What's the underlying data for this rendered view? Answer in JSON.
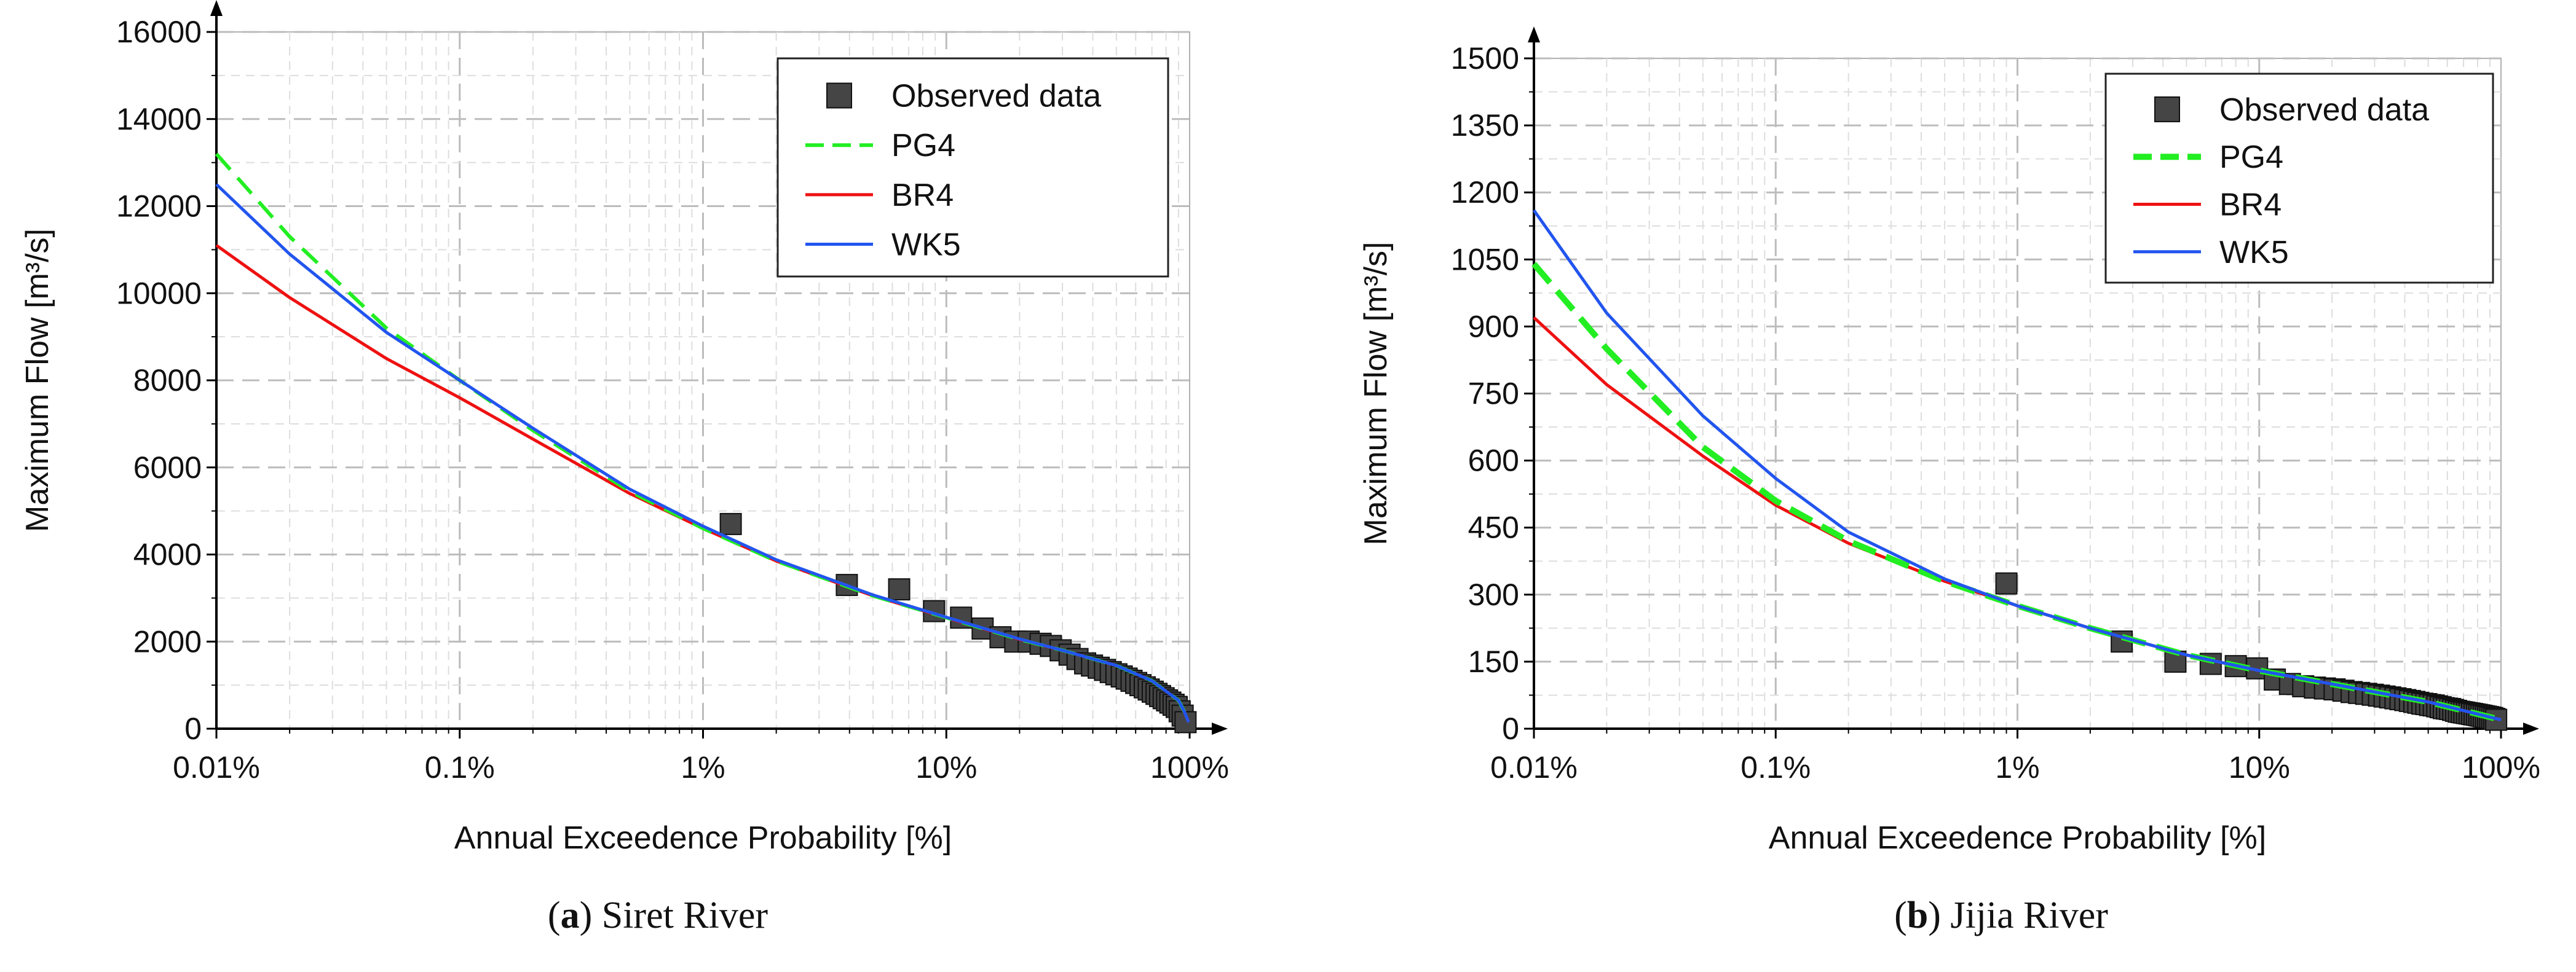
{
  "colors": {
    "observed": "#454545",
    "pg4": "#22ee22",
    "br4": "#ee1111",
    "wk5": "#2255ee",
    "grid": "#c8c8c8",
    "axis": "#000000"
  },
  "chart_data": [
    {
      "type": "scatter",
      "title": "",
      "caption": {
        "letter": "a",
        "text": ") Siret River",
        "open": "("
      },
      "xlabel": "Annual Exceedence Probability [%]",
      "ylabel": "Maximum Flow [m³/s]",
      "x_scale": "log",
      "xlim": [
        0.01,
        100
      ],
      "ylim": [
        0,
        16000
      ],
      "x_ticks": [
        {
          "value": 0.01,
          "label": "0.01%"
        },
        {
          "value": 0.1,
          "label": "0.1%"
        },
        {
          "value": 1,
          "label": "1%"
        },
        {
          "value": 10,
          "label": "10%"
        },
        {
          "value": 100,
          "label": "100%"
        }
      ],
      "y_ticks": [
        {
          "value": 0,
          "label": "0"
        },
        {
          "value": 2000,
          "label": "2000"
        },
        {
          "value": 4000,
          "label": "4000"
        },
        {
          "value": 6000,
          "label": "6000"
        },
        {
          "value": 8000,
          "label": "8000"
        },
        {
          "value": 10000,
          "label": "10000"
        },
        {
          "value": 12000,
          "label": "12000"
        },
        {
          "value": 14000,
          "label": "14000"
        },
        {
          "value": 16000,
          "label": "16000"
        }
      ],
      "legend": {
        "position": "top-right",
        "entries": [
          {
            "key": "observed",
            "label": "Observed data"
          },
          {
            "key": "pg4",
            "label": "PG4"
          },
          {
            "key": "br4",
            "label": "BR4"
          },
          {
            "key": "wk5",
            "label": "WK5"
          }
        ]
      },
      "grid": true,
      "observed": {
        "x": [
          1.3,
          3.9,
          6.4,
          8.9,
          11.5,
          14.1,
          16.7,
          19.2,
          21.8,
          24.4,
          26.9,
          29.5,
          32.1,
          34.6,
          37.2,
          39.7,
          42.3,
          44.9,
          47.4,
          50.0,
          52.6,
          55.1,
          57.7,
          60.3,
          62.8,
          65.4,
          67.9,
          70.5,
          73.1,
          75.6,
          78.2,
          80.8,
          83.3,
          85.9,
          88.5,
          91.0,
          93.6,
          96.2
        ],
        "y": [
          4700,
          3300,
          3200,
          2700,
          2550,
          2300,
          2100,
          2000,
          2000,
          1950,
          1900,
          1800,
          1700,
          1600,
          1500,
          1450,
          1400,
          1350,
          1300,
          1250,
          1200,
          1150,
          1100,
          1050,
          1000,
          950,
          900,
          850,
          800,
          750,
          700,
          650,
          600,
          550,
          500,
          400,
          300,
          150
        ]
      },
      "series": [
        {
          "name": "PG4",
          "dash": true,
          "x": [
            0.01,
            0.02,
            0.05,
            0.1,
            0.2,
            0.5,
            1,
            2,
            5,
            10,
            20,
            30,
            50,
            70,
            90,
            95,
            99
          ],
          "y": [
            13200,
            11300,
            9200,
            8000,
            6850,
            5450,
            4600,
            3850,
            3050,
            2550,
            2050,
            1800,
            1450,
            1100,
            650,
            400,
            150
          ]
        },
        {
          "name": "BR4",
          "dash": false,
          "x": [
            0.01,
            0.02,
            0.05,
            0.1,
            0.2,
            0.5,
            1,
            2,
            5,
            10,
            20,
            30,
            50,
            70,
            90,
            95,
            99
          ],
          "y": [
            11100,
            9900,
            8500,
            7600,
            6650,
            5400,
            4600,
            3850,
            3050,
            2550,
            2050,
            1800,
            1450,
            1100,
            650,
            400,
            150
          ]
        },
        {
          "name": "WK5",
          "dash": false,
          "x": [
            0.01,
            0.02,
            0.05,
            0.1,
            0.2,
            0.5,
            1,
            2,
            5,
            10,
            20,
            30,
            50,
            70,
            90,
            95,
            99
          ],
          "y": [
            12500,
            10900,
            9100,
            8000,
            6900,
            5500,
            4650,
            3880,
            3070,
            2560,
            2060,
            1800,
            1450,
            1100,
            650,
            400,
            150
          ]
        }
      ]
    },
    {
      "type": "scatter",
      "title": "",
      "caption": {
        "letter": "b",
        "text": ") Jijia River",
        "open": "("
      },
      "xlabel": "Annual Exceedence Probability [%]",
      "ylabel": "Maximum Flow [m³/s]",
      "x_scale": "log",
      "xlim": [
        0.01,
        100
      ],
      "ylim": [
        0,
        1500
      ],
      "x_ticks": [
        {
          "value": 0.01,
          "label": "0.01%"
        },
        {
          "value": 0.1,
          "label": "0.1%"
        },
        {
          "value": 1,
          "label": "1%"
        },
        {
          "value": 10,
          "label": "10%"
        },
        {
          "value": 100,
          "label": "100%"
        }
      ],
      "y_ticks": [
        {
          "value": 0,
          "label": "0"
        },
        {
          "value": 150,
          "label": "150"
        },
        {
          "value": 300,
          "label": "300"
        },
        {
          "value": 450,
          "label": "450"
        },
        {
          "value": 600,
          "label": "600"
        },
        {
          "value": 750,
          "label": "750"
        },
        {
          "value": 900,
          "label": "900"
        },
        {
          "value": 1050,
          "label": "1050"
        },
        {
          "value": 1200,
          "label": "1200"
        },
        {
          "value": 1350,
          "label": "1350"
        },
        {
          "value": 1500,
          "label": "1500"
        }
      ],
      "legend": {
        "position": "top-right",
        "entries": [
          {
            "key": "observed",
            "label": "Observed data"
          },
          {
            "key": "pg4",
            "label": "PG4"
          },
          {
            "key": "br4",
            "label": "BR4"
          },
          {
            "key": "wk5",
            "label": "WK5"
          }
        ]
      },
      "grid": true,
      "observed": {
        "x": [
          0.9,
          2.7,
          4.5,
          6.3,
          8.0,
          9.8,
          11.6,
          13.4,
          15.2,
          17.0,
          18.7,
          20.5,
          22.3,
          24.1,
          25.9,
          27.7,
          29.5,
          31.3,
          33.0,
          34.8,
          36.6,
          38.4,
          40.2,
          42.0,
          43.8,
          45.5,
          47.3,
          49.1,
          50.9,
          52.7,
          54.5,
          56.3,
          58.0,
          59.8,
          61.6,
          63.4,
          65.2,
          67.0,
          68.8,
          70.5,
          72.3,
          74.1,
          75.9,
          77.7,
          79.5,
          81.3,
          83.0,
          84.8,
          86.6,
          88.4,
          90.2,
          92.0,
          93.8,
          95.5
        ],
        "y": [
          325,
          195,
          150,
          145,
          140,
          135,
          110,
          100,
          95,
          92,
          90,
          88,
          85,
          82,
          80,
          78,
          76,
          74,
          72,
          70,
          68,
          66,
          64,
          62,
          60,
          58,
          56,
          55,
          53,
          52,
          50,
          48,
          46,
          45,
          44,
          42,
          40,
          38,
          37,
          36,
          35,
          34,
          33,
          32,
          31,
          30,
          29,
          28,
          27,
          26,
          25,
          24,
          22,
          20
        ]
      },
      "series": [
        {
          "name": "PG4",
          "dash": true,
          "x": [
            0.01,
            0.02,
            0.05,
            0.1,
            0.2,
            0.5,
            1,
            2,
            5,
            10,
            20,
            50,
            100
          ],
          "y": [
            1040,
            850,
            630,
            510,
            420,
            330,
            275,
            225,
            165,
            130,
            100,
            60,
            20
          ]
        },
        {
          "name": "BR4",
          "dash": false,
          "x": [
            0.01,
            0.02,
            0.05,
            0.1,
            0.2,
            0.5,
            1,
            2,
            5,
            10,
            20,
            50,
            100
          ],
          "y": [
            920,
            770,
            610,
            500,
            415,
            330,
            275,
            225,
            165,
            130,
            100,
            60,
            20
          ]
        },
        {
          "name": "WK5",
          "dash": false,
          "x": [
            0.01,
            0.02,
            0.05,
            0.1,
            0.2,
            0.5,
            1,
            2,
            5,
            10,
            20,
            50,
            100
          ],
          "y": [
            1160,
            930,
            700,
            560,
            440,
            335,
            275,
            225,
            165,
            130,
            100,
            60,
            20
          ]
        }
      ]
    }
  ]
}
